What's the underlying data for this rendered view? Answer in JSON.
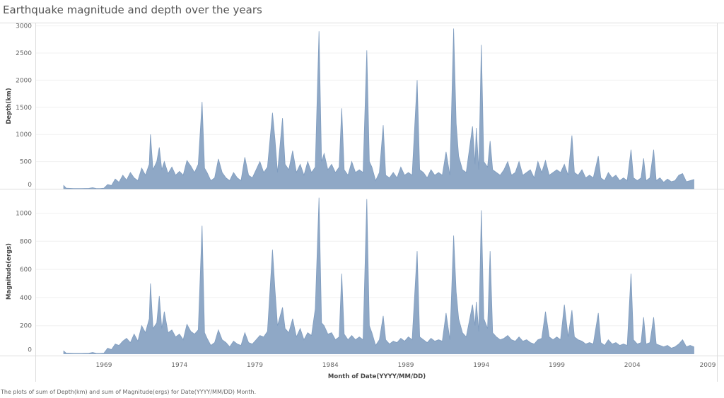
{
  "title": "Earthquake magnitude and depth over the years",
  "caption": "The plots of sum of Depth(km) and sum of Magnitude(ergs) for Date(YYYY/MM/DD) Month.",
  "fill_color": "#8fa8c6",
  "line_color": "#7f9cbf",
  "chart_data": [
    {
      "type": "area",
      "ylabel": "Depth(km)",
      "xlabel": "Month of Date(YYYY/MM/DD)",
      "ylim": [
        0,
        3000
      ],
      "yticks": [
        "0",
        "500",
        "1000",
        "1500",
        "2000",
        "2500",
        "3000"
      ],
      "grid": true
    },
    {
      "type": "area",
      "ylabel": "Magnitude(ergs)",
      "xlabel": "Month of Date(YYYY/MM/DD)",
      "ylim": [
        0,
        1100
      ],
      "yticks": [
        "0",
        "200",
        "400",
        "600",
        "800",
        "1000"
      ],
      "grid": true
    }
  ],
  "x_axis": {
    "label": "Month of Date(YYYY/MM/DD)",
    "ticks": [
      "1969",
      "1974",
      "1979",
      "1984",
      "1989",
      "1994",
      "1999",
      "2004",
      "2009"
    ]
  },
  "series_columns": [
    "month",
    "depth_km",
    "magnitude_ergs"
  ],
  "series": [
    [
      "1966-05",
      60,
      20
    ],
    [
      "1966-07",
      10,
      5
    ],
    [
      "1967-01",
      5,
      3
    ],
    [
      "1967-07",
      5,
      3
    ],
    [
      "1968-01",
      8,
      4
    ],
    [
      "1968-04",
      20,
      10
    ],
    [
      "1968-07",
      5,
      3
    ],
    [
      "1968-10",
      5,
      3
    ],
    [
      "1969-01",
      10,
      5
    ],
    [
      "1969-04",
      80,
      40
    ],
    [
      "1969-07",
      60,
      30
    ],
    [
      "1969-10",
      180,
      70
    ],
    [
      "1970-01",
      120,
      60
    ],
    [
      "1970-04",
      250,
      90
    ],
    [
      "1970-07",
      160,
      110
    ],
    [
      "1970-10",
      300,
      80
    ],
    [
      "1971-01",
      200,
      140
    ],
    [
      "1971-04",
      150,
      90
    ],
    [
      "1971-07",
      380,
      200
    ],
    [
      "1971-10",
      250,
      150
    ],
    [
      "1972-01",
      450,
      250
    ],
    [
      "1972-02",
      1000,
      500
    ],
    [
      "1972-04",
      350,
      180
    ],
    [
      "1972-07",
      500,
      220
    ],
    [
      "1972-09",
      760,
      410
    ],
    [
      "1972-11",
      350,
      180
    ],
    [
      "1973-01",
      500,
      300
    ],
    [
      "1973-04",
      280,
      150
    ],
    [
      "1973-07",
      400,
      170
    ],
    [
      "1973-10",
      250,
      120
    ],
    [
      "1974-01",
      320,
      140
    ],
    [
      "1974-04",
      250,
      100
    ],
    [
      "1974-07",
      520,
      210
    ],
    [
      "1974-10",
      420,
      160
    ],
    [
      "1975-01",
      300,
      140
    ],
    [
      "1975-04",
      450,
      170
    ],
    [
      "1975-07",
      1600,
      910
    ],
    [
      "1975-09",
      380,
      150
    ],
    [
      "1975-11",
      300,
      110
    ],
    [
      "1976-02",
      150,
      60
    ],
    [
      "1976-05",
      200,
      80
    ],
    [
      "1976-08",
      550,
      170
    ],
    [
      "1976-11",
      300,
      100
    ],
    [
      "1977-02",
      200,
      80
    ],
    [
      "1977-05",
      150,
      50
    ],
    [
      "1977-08",
      300,
      90
    ],
    [
      "1977-11",
      200,
      70
    ],
    [
      "1978-02",
      150,
      60
    ],
    [
      "1978-05",
      580,
      150
    ],
    [
      "1978-08",
      250,
      80
    ],
    [
      "1978-11",
      200,
      70
    ],
    [
      "1979-02",
      350,
      100
    ],
    [
      "1979-05",
      500,
      130
    ],
    [
      "1979-08",
      300,
      120
    ],
    [
      "1979-11",
      400,
      160
    ],
    [
      "1980-03",
      1400,
      740
    ],
    [
      "1980-05",
      900,
      450
    ],
    [
      "1980-07",
      300,
      200
    ],
    [
      "1980-11",
      1300,
      330
    ],
    [
      "1981-01",
      450,
      180
    ],
    [
      "1981-04",
      350,
      150
    ],
    [
      "1981-07",
      700,
      250
    ],
    [
      "1981-10",
      300,
      120
    ],
    [
      "1982-01",
      450,
      180
    ],
    [
      "1982-04",
      250,
      100
    ],
    [
      "1982-07",
      500,
      150
    ],
    [
      "1982-10",
      300,
      130
    ],
    [
      "1983-01",
      400,
      320
    ],
    [
      "1983-04",
      2900,
      1110
    ],
    [
      "1983-06",
      500,
      220
    ],
    [
      "1983-08",
      650,
      200
    ],
    [
      "1983-11",
      350,
      140
    ],
    [
      "1984-02",
      450,
      150
    ],
    [
      "1984-05",
      300,
      100
    ],
    [
      "1984-08",
      400,
      120
    ],
    [
      "1984-10",
      1480,
      570
    ],
    [
      "1984-12",
      350,
      140
    ],
    [
      "1985-03",
      250,
      100
    ],
    [
      "1985-06",
      500,
      130
    ],
    [
      "1985-09",
      300,
      100
    ],
    [
      "1985-12",
      350,
      120
    ],
    [
      "1986-03",
      300,
      100
    ],
    [
      "1986-06",
      2550,
      1100
    ],
    [
      "1986-08",
      500,
      200
    ],
    [
      "1986-10",
      400,
      150
    ],
    [
      "1987-01",
      150,
      60
    ],
    [
      "1987-04",
      300,
      100
    ],
    [
      "1987-07",
      1170,
      270
    ],
    [
      "1987-09",
      250,
      100
    ],
    [
      "1987-12",
      200,
      70
    ],
    [
      "1988-03",
      300,
      90
    ],
    [
      "1988-06",
      200,
      80
    ],
    [
      "1988-09",
      400,
      110
    ],
    [
      "1988-12",
      250,
      90
    ],
    [
      "1989-03",
      300,
      120
    ],
    [
      "1989-06",
      250,
      100
    ],
    [
      "1989-10",
      2000,
      730
    ],
    [
      "1989-12",
      350,
      120
    ],
    [
      "1990-03",
      300,
      100
    ],
    [
      "1990-06",
      200,
      80
    ],
    [
      "1990-09",
      350,
      110
    ],
    [
      "1990-12",
      250,
      90
    ],
    [
      "1991-03",
      300,
      100
    ],
    [
      "1991-06",
      250,
      90
    ],
    [
      "1991-09",
      680,
      290
    ],
    [
      "1991-12",
      250,
      100
    ],
    [
      "1992-03",
      2950,
      840
    ],
    [
      "1992-05",
      1200,
      440
    ],
    [
      "1992-07",
      600,
      250
    ],
    [
      "1992-10",
      350,
      150
    ],
    [
      "1993-01",
      300,
      120
    ],
    [
      "1993-06",
      1150,
      350
    ],
    [
      "1993-08",
      450,
      200
    ],
    [
      "1993-09",
      1120,
      370
    ],
    [
      "1993-11",
      350,
      160
    ],
    [
      "1994-01",
      2650,
      1020
    ],
    [
      "1994-03",
      500,
      250
    ],
    [
      "1994-06",
      400,
      180
    ],
    [
      "1994-08",
      880,
      730
    ],
    [
      "1994-10",
      350,
      150
    ],
    [
      "1995-01",
      300,
      120
    ],
    [
      "1995-04",
      250,
      100
    ],
    [
      "1995-07",
      350,
      110
    ],
    [
      "1995-10",
      500,
      130
    ],
    [
      "1996-01",
      250,
      100
    ],
    [
      "1996-04",
      300,
      90
    ],
    [
      "1996-07",
      500,
      120
    ],
    [
      "1996-10",
      250,
      90
    ],
    [
      "1997-01",
      300,
      100
    ],
    [
      "1997-04",
      350,
      80
    ],
    [
      "1997-07",
      200,
      70
    ],
    [
      "1997-10",
      500,
      100
    ],
    [
      "1998-01",
      300,
      110
    ],
    [
      "1998-04",
      520,
      300
    ],
    [
      "1998-07",
      250,
      120
    ],
    [
      "1998-10",
      300,
      100
    ],
    [
      "1999-01",
      350,
      120
    ],
    [
      "1999-04",
      300,
      100
    ],
    [
      "1999-07",
      450,
      350
    ],
    [
      "1999-10",
      250,
      120
    ],
    [
      "2000-01",
      980,
      310
    ],
    [
      "2000-03",
      300,
      120
    ],
    [
      "2000-06",
      250,
      100
    ],
    [
      "2000-09",
      350,
      90
    ],
    [
      "2000-12",
      200,
      70
    ],
    [
      "2001-03",
      250,
      80
    ],
    [
      "2001-06",
      200,
      70
    ],
    [
      "2001-10",
      600,
      290
    ],
    [
      "2001-12",
      200,
      80
    ],
    [
      "2002-03",
      150,
      60
    ],
    [
      "2002-06",
      300,
      100
    ],
    [
      "2002-09",
      200,
      70
    ],
    [
      "2002-12",
      250,
      80
    ],
    [
      "2003-03",
      150,
      60
    ],
    [
      "2003-06",
      200,
      70
    ],
    [
      "2003-09",
      150,
      60
    ],
    [
      "2003-12",
      720,
      570
    ],
    [
      "2004-02",
      200,
      100
    ],
    [
      "2004-05",
      150,
      70
    ],
    [
      "2004-08",
      200,
      80
    ],
    [
      "2004-10",
      560,
      260
    ],
    [
      "2004-12",
      150,
      70
    ],
    [
      "2005-03",
      200,
      80
    ],
    [
      "2005-06",
      720,
      260
    ],
    [
      "2005-08",
      150,
      70
    ],
    [
      "2005-11",
      200,
      60
    ],
    [
      "2006-02",
      120,
      50
    ],
    [
      "2006-05",
      180,
      60
    ],
    [
      "2006-08",
      130,
      40
    ],
    [
      "2006-11",
      150,
      50
    ],
    [
      "2007-02",
      250,
      70
    ],
    [
      "2007-05",
      280,
      100
    ],
    [
      "2007-08",
      130,
      50
    ],
    [
      "2007-11",
      150,
      60
    ],
    [
      "2008-02",
      170,
      50
    ]
  ]
}
